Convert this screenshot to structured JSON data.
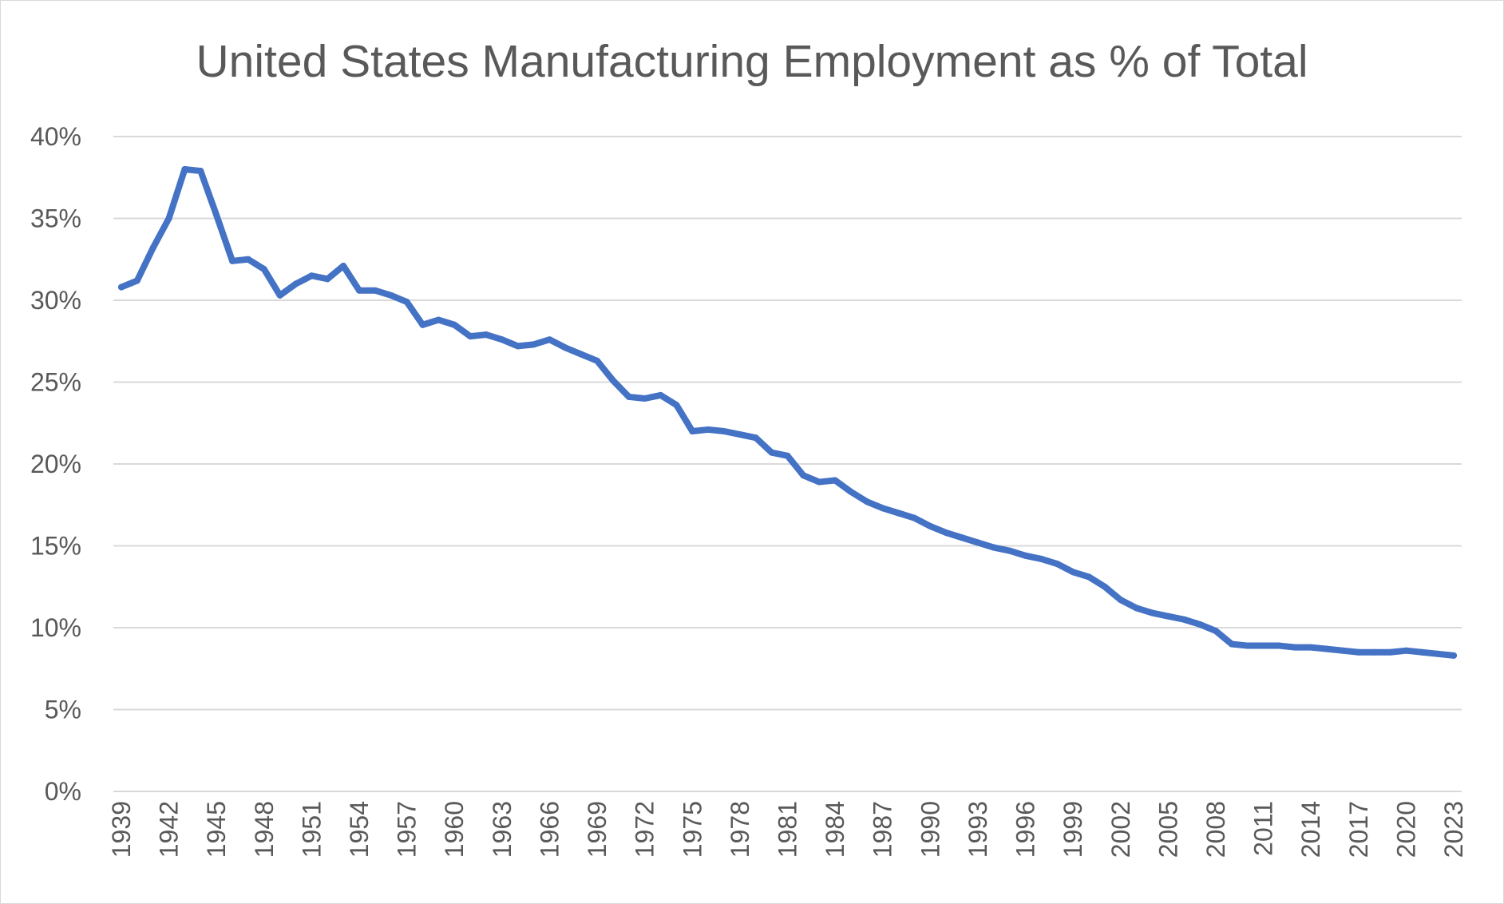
{
  "chart_data": {
    "type": "line",
    "title": "United States Manufacturing Employment as % of Total",
    "xlabel": "",
    "ylabel": "",
    "ylim": [
      0,
      40
    ],
    "y_ticks": [
      0,
      5,
      10,
      15,
      20,
      25,
      30,
      35,
      40
    ],
    "y_tick_labels": [
      "0%",
      "5%",
      "10%",
      "15%",
      "20%",
      "25%",
      "30%",
      "35%",
      "40%"
    ],
    "x_tick_labels": [
      "1939",
      "1942",
      "1945",
      "1948",
      "1951",
      "1954",
      "1957",
      "1960",
      "1963",
      "1966",
      "1969",
      "1972",
      "1975",
      "1978",
      "1981",
      "1984",
      "1987",
      "1990",
      "1993",
      "1996",
      "1999",
      "2002",
      "2005",
      "2008",
      "2011",
      "2014",
      "2017",
      "2020",
      "2023"
    ],
    "grid": true,
    "legend": "none",
    "colors": {
      "line": "#4472c4",
      "grid": "#d9d9d9",
      "text": "#595959"
    },
    "x": [
      1939,
      1940,
      1941,
      1942,
      1943,
      1944,
      1945,
      1946,
      1947,
      1948,
      1949,
      1950,
      1951,
      1952,
      1953,
      1954,
      1955,
      1956,
      1957,
      1958,
      1959,
      1960,
      1961,
      1962,
      1963,
      1964,
      1965,
      1966,
      1967,
      1968,
      1969,
      1970,
      1971,
      1972,
      1973,
      1974,
      1975,
      1976,
      1977,
      1978,
      1979,
      1980,
      1981,
      1982,
      1983,
      1984,
      1985,
      1986,
      1987,
      1988,
      1989,
      1990,
      1991,
      1992,
      1993,
      1994,
      1995,
      1996,
      1997,
      1998,
      1999,
      2000,
      2001,
      2002,
      2003,
      2004,
      2005,
      2006,
      2007,
      2008,
      2009,
      2010,
      2011,
      2012,
      2013,
      2014,
      2015,
      2016,
      2017,
      2018,
      2019,
      2020,
      2021,
      2022,
      2023
    ],
    "series": [
      {
        "values": [
          30.8,
          31.2,
          33.2,
          35.0,
          38.0,
          37.9,
          35.2,
          32.4,
          32.5,
          31.9,
          30.3,
          31.0,
          31.5,
          31.3,
          32.1,
          30.6,
          30.6,
          30.3,
          29.9,
          28.5,
          28.8,
          28.5,
          27.8,
          27.9,
          27.6,
          27.2,
          27.3,
          27.6,
          27.1,
          26.7,
          26.3,
          25.1,
          24.1,
          24.0,
          24.2,
          23.6,
          22.0,
          22.1,
          22.0,
          21.8,
          21.6,
          20.7,
          20.5,
          19.3,
          18.9,
          19.0,
          18.3,
          17.7,
          17.3,
          17.0,
          16.7,
          16.2,
          15.8,
          15.5,
          15.2,
          14.9,
          14.7,
          14.4,
          14.2,
          13.9,
          13.4,
          13.1,
          12.5,
          11.7,
          11.2,
          10.9,
          10.7,
          10.5,
          10.2,
          9.8,
          9.0,
          8.9,
          8.9,
          8.9,
          8.8,
          8.8,
          8.7,
          8.6,
          8.5,
          8.5,
          8.5,
          8.6,
          8.5,
          8.4,
          8.3
        ]
      }
    ]
  }
}
